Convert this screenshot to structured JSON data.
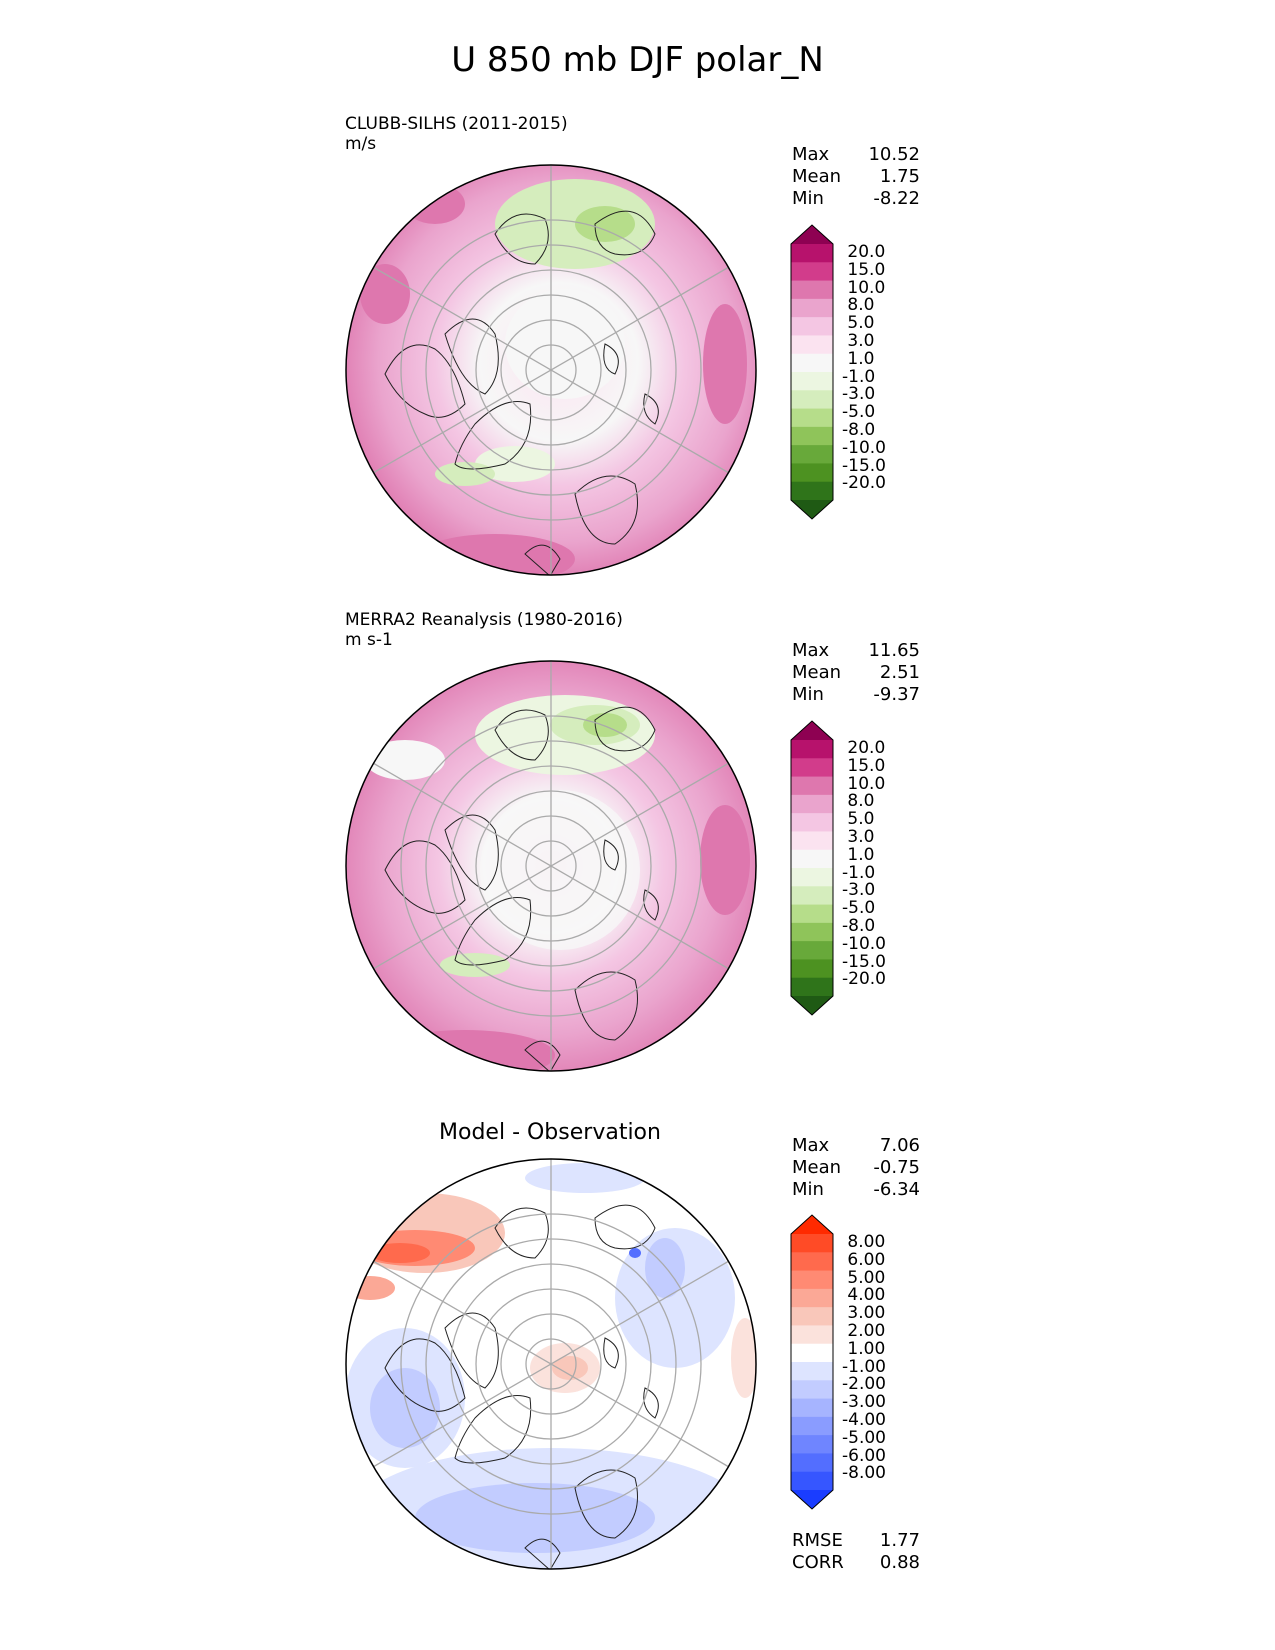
{
  "title": "U 850 mb DJF polar_N",
  "panels": [
    {
      "name": "model",
      "label1": "CLUBB-SILHS (2011-2015)",
      "label2": "m/s",
      "stats": [
        {
          "k": "Max",
          "v": "10.52"
        },
        {
          "k": "Mean",
          "v": "1.75"
        },
        {
          "k": "Min",
          "v": "-8.22"
        }
      ],
      "colorbar": {
        "colors": [
          "#8e0152",
          "#b7126c",
          "#d23c8b",
          "#de77ae",
          "#eaa4cd",
          "#f4c6e3",
          "#fbe3f0",
          "#f7f7f7",
          "#ecf6e1",
          "#d5edbd",
          "#b6dd8a",
          "#8fc45a",
          "#68a93a",
          "#4d9221",
          "#2f741a",
          "#1f5a14"
        ],
        "ticks": [
          "20.0",
          "15.0",
          "10.0",
          "8.0",
          "5.0",
          "3.0",
          "1.0",
          "-1.0",
          "-3.0",
          "-5.0",
          "-8.0",
          "-10.0",
          "-15.0",
          "-20.0"
        ]
      }
    },
    {
      "name": "obs",
      "label1": "MERRA2 Reanalysis (1980-2016)",
      "label2": "m s-1",
      "stats": [
        {
          "k": "Max",
          "v": "11.65"
        },
        {
          "k": "Mean",
          "v": "2.51"
        },
        {
          "k": "Min",
          "v": "-9.37"
        }
      ],
      "colorbar": {
        "colors": [
          "#8e0152",
          "#b7126c",
          "#d23c8b",
          "#de77ae",
          "#eaa4cd",
          "#f4c6e3",
          "#fbe3f0",
          "#f7f7f7",
          "#ecf6e1",
          "#d5edbd",
          "#b6dd8a",
          "#8fc45a",
          "#68a93a",
          "#4d9221",
          "#2f741a",
          "#1f5a14"
        ],
        "ticks": [
          "20.0",
          "15.0",
          "10.0",
          "8.0",
          "5.0",
          "3.0",
          "1.0",
          "-1.0",
          "-3.0",
          "-5.0",
          "-8.0",
          "-10.0",
          "-15.0",
          "-20.0"
        ]
      }
    },
    {
      "name": "diff",
      "centertitle": "Model - Observation",
      "stats": [
        {
          "k": "Max",
          "v": "7.06"
        },
        {
          "k": "Mean",
          "v": "-0.75"
        },
        {
          "k": "Min",
          "v": "-6.34"
        }
      ],
      "colorbar": {
        "colors": [
          "#ff2a00",
          "#ff4b26",
          "#ff6a4d",
          "#ff8a73",
          "#fba896",
          "#f9c7ba",
          "#fbe2dc",
          "#ffffff",
          "#dde4ff",
          "#c2ccff",
          "#a6b4ff",
          "#8a9cff",
          "#6f85ff",
          "#536eff",
          "#3656ff",
          "#1a3dff"
        ],
        "ticks": [
          "8.00",
          "6.00",
          "5.00",
          "4.00",
          "3.00",
          "2.00",
          "1.00",
          "-1.00",
          "-2.00",
          "-3.00",
          "-4.00",
          "-5.00",
          "-6.00",
          "-8.00"
        ]
      },
      "extra_stats": [
        {
          "k": "RMSE",
          "v": "1.77"
        },
        {
          "k": "CORR",
          "v": "0.88"
        }
      ]
    }
  ]
}
